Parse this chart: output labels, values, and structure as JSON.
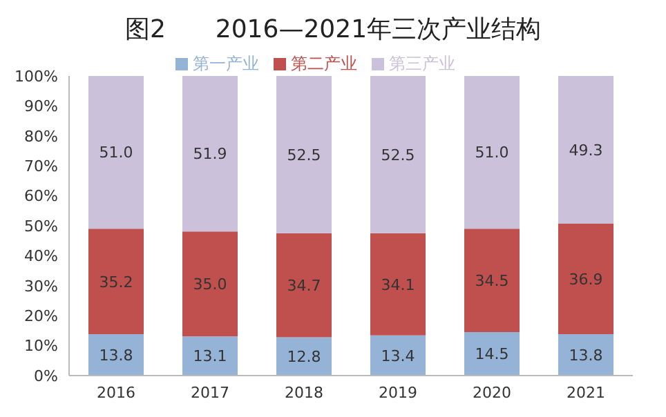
{
  "chart_data": {
    "type": "bar",
    "title": "图2　　2016—2021年三次产业结构",
    "stacked": true,
    "legend": "top",
    "grid": false,
    "categories": [
      "2016",
      "2017",
      "2018",
      "2019",
      "2020",
      "2021"
    ],
    "series": [
      {
        "name": "第一产业",
        "color": "#95b3d7",
        "values": [
          13.8,
          13.1,
          12.8,
          13.4,
          14.5,
          13.8
        ],
        "value_labels": [
          "13.8",
          "13.1",
          "12.8",
          "13.4",
          "14.5",
          "13.8"
        ]
      },
      {
        "name": "第二产业",
        "color": "#c0504d",
        "values": [
          35.2,
          35.0,
          34.7,
          34.1,
          34.5,
          36.9
        ],
        "value_labels": [
          "35.2",
          "35.0",
          "34.7",
          "34.1",
          "34.5",
          "36.9"
        ]
      },
      {
        "name": "第三产业",
        "color": "#ccc1da",
        "values": [
          51.0,
          51.9,
          52.5,
          52.5,
          51.0,
          49.3
        ],
        "value_labels": [
          "51.0",
          "51.9",
          "52.5",
          "52.5",
          "51.0",
          "49.3"
        ]
      }
    ],
    "ylim": [
      0,
      100
    ],
    "yticks": [
      {
        "value": 0,
        "label": "0%"
      },
      {
        "value": 10,
        "label": "10%"
      },
      {
        "value": 20,
        "label": "20%"
      },
      {
        "value": 30,
        "label": "30%"
      },
      {
        "value": 40,
        "label": "40%"
      },
      {
        "value": 50,
        "label": "50%"
      },
      {
        "value": 60,
        "label": "60%"
      },
      {
        "value": 70,
        "label": "70%"
      },
      {
        "value": 80,
        "label": "80%"
      },
      {
        "value": 90,
        "label": "90%"
      },
      {
        "value": 100,
        "label": "100%"
      }
    ]
  }
}
